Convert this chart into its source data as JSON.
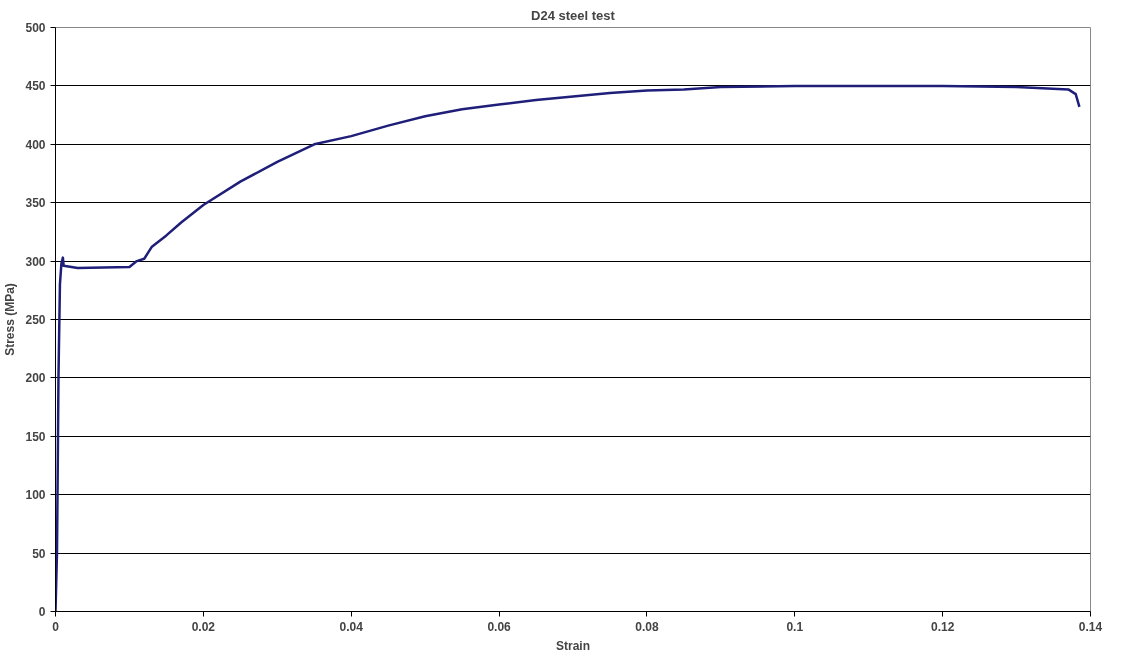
{
  "chart_data": {
    "type": "line",
    "title": "D24 steel test",
    "xlabel": "Strain",
    "ylabel": "Stress (MPa)",
    "xlim": [
      0,
      0.14
    ],
    "xticks": [
      0,
      0.02,
      0.04,
      0.06,
      0.08,
      {
        "value": 0.1,
        "label": "0.1"
      },
      0.12,
      0.14
    ],
    "ylim": [
      0,
      500
    ],
    "yticks": [
      0,
      50,
      100,
      150,
      200,
      250,
      300,
      350,
      400,
      450,
      500
    ],
    "grid": "y",
    "marker": "none",
    "line_style": "solid",
    "series": [
      {
        "color": "#1f1f7a",
        "x": [
          0,
          0.0002,
          0.0003,
          0.0004,
          0.0006,
          0.0008,
          0.001,
          0.0011,
          0.003,
          0.01,
          0.011,
          0.012,
          0.013,
          0.015,
          0.017,
          0.02,
          0.025,
          0.03,
          0.035,
          0.04,
          0.045,
          0.05,
          0.055,
          0.06,
          0.065,
          0.07,
          0.075,
          0.08,
          0.085,
          0.09,
          0.1,
          0.11,
          0.12,
          0.13,
          0.137,
          0.138,
          0.1385
        ],
        "values": [
          0,
          50,
          120,
          200,
          280,
          298,
          303,
          296,
          294,
          295,
          300,
          302,
          312,
          322,
          333,
          348,
          368,
          385,
          400,
          407,
          416,
          424,
          430,
          434,
          438,
          441,
          444,
          446,
          447,
          449,
          450,
          450,
          450,
          449,
          447,
          443,
          432
        ]
      }
    ]
  }
}
